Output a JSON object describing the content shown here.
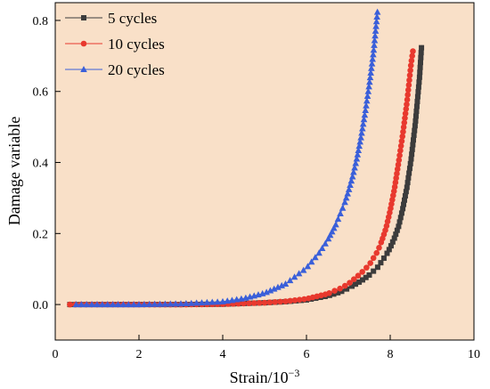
{
  "chart_data": {
    "type": "line",
    "xlabel": "Strain/10",
    "xlabel_exponent": "−3",
    "ylabel": "Damage variable",
    "xlim": [
      0,
      10
    ],
    "ylim": [
      -0.1,
      0.85
    ],
    "x_ticks": [
      0,
      2,
      4,
      6,
      8,
      10
    ],
    "x_tick_labels": [
      "0",
      "2",
      "4",
      "6",
      "8",
      "10"
    ],
    "y_ticks": [
      0.0,
      0.2,
      0.4,
      0.6,
      0.8
    ],
    "y_tick_labels": [
      "0.0",
      "0.2",
      "0.4",
      "0.6",
      "0.8"
    ],
    "background_color": "#f9e0c8",
    "grid": false,
    "legend_position": "top-left",
    "series": [
      {
        "name": "5 cycles",
        "color": "#3c3c3c",
        "marker": "square",
        "x": [
          0.35,
          1.0,
          2.0,
          3.0,
          4.0,
          4.5,
          5.0,
          5.5,
          6.0,
          6.5,
          6.8,
          7.0,
          7.3,
          7.5,
          7.7,
          7.9,
          8.0,
          8.1,
          8.2,
          8.3,
          8.4,
          8.5,
          8.6,
          8.7,
          8.75
        ],
        "y": [
          0.0,
          0.0,
          0.0,
          0.0,
          0.001,
          0.003,
          0.005,
          0.008,
          0.013,
          0.024,
          0.035,
          0.046,
          0.066,
          0.083,
          0.105,
          0.139,
          0.16,
          0.187,
          0.22,
          0.27,
          0.33,
          0.41,
          0.51,
          0.64,
          0.73
        ]
      },
      {
        "name": "10 cycles",
        "color": "#e8392e",
        "marker": "circle",
        "x": [
          0.35,
          1.0,
          2.0,
          3.0,
          4.0,
          4.5,
          5.0,
          5.5,
          6.0,
          6.5,
          6.8,
          7.0,
          7.3,
          7.5,
          7.7,
          7.8,
          7.9,
          8.0,
          8.1,
          8.2,
          8.3,
          8.4,
          8.5,
          8.55
        ],
        "y": [
          0.0,
          0.0,
          0.0,
          0.0,
          0.001,
          0.003,
          0.005,
          0.009,
          0.016,
          0.03,
          0.045,
          0.058,
          0.088,
          0.112,
          0.15,
          0.18,
          0.215,
          0.265,
          0.325,
          0.4,
          0.48,
          0.57,
          0.68,
          0.72
        ]
      },
      {
        "name": "20 cycles",
        "color": "#3a5fd9",
        "marker": "triangle",
        "x": [
          0.5,
          1.0,
          2.0,
          3.0,
          4.0,
          4.5,
          5.0,
          5.5,
          6.0,
          6.3,
          6.5,
          6.7,
          6.9,
          7.0,
          7.1,
          7.2,
          7.3,
          7.4,
          7.5,
          7.6,
          7.7
        ],
        "y": [
          0.0,
          0.0,
          0.0,
          0.002,
          0.008,
          0.017,
          0.032,
          0.058,
          0.103,
          0.145,
          0.18,
          0.225,
          0.282,
          0.318,
          0.36,
          0.41,
          0.47,
          0.54,
          0.62,
          0.71,
          0.83
        ]
      }
    ]
  }
}
